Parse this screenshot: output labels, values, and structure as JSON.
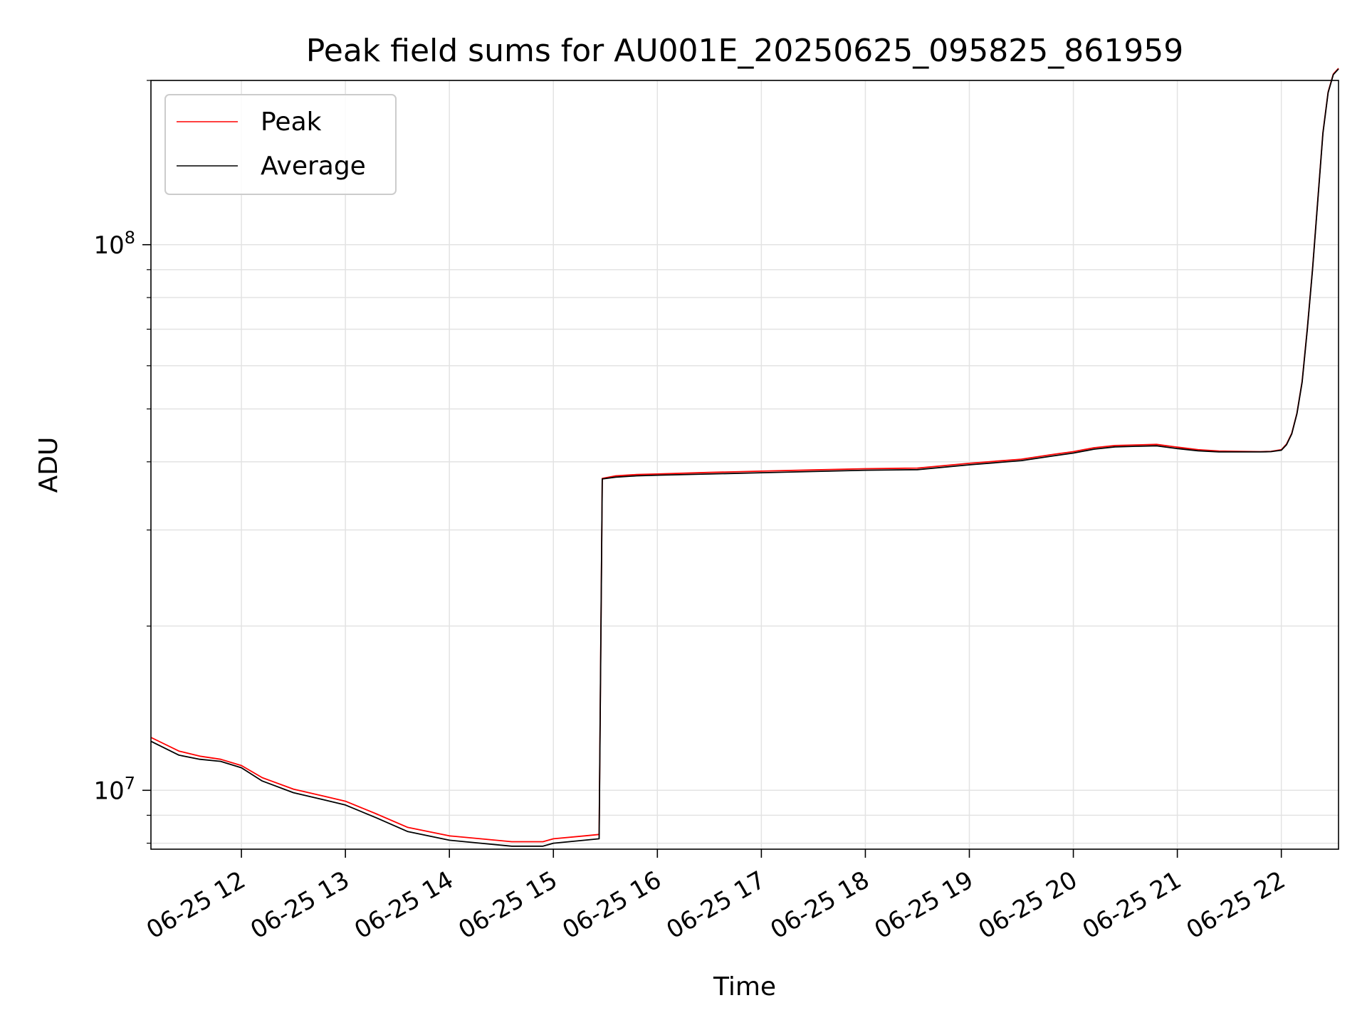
{
  "chart_data": {
    "type": "line",
    "title": "Peak field sums for AU001E_20250625_095825_861959",
    "xlabel": "Time",
    "ylabel": "ADU",
    "yscale": "log",
    "ylim": [
      7800000,
      200000000
    ],
    "xlim": [
      11.13,
      22.55
    ],
    "x_ticks": [
      {
        "value": 12,
        "label": "06-25 12"
      },
      {
        "value": 13,
        "label": "06-25 13"
      },
      {
        "value": 14,
        "label": "06-25 14"
      },
      {
        "value": 15,
        "label": "06-25 15"
      },
      {
        "value": 16,
        "label": "06-25 16"
      },
      {
        "value": 17,
        "label": "06-25 17"
      },
      {
        "value": 18,
        "label": "06-25 18"
      },
      {
        "value": 19,
        "label": "06-25 19"
      },
      {
        "value": 20,
        "label": "06-25 20"
      },
      {
        "value": 21,
        "label": "06-25 21"
      },
      {
        "value": 22,
        "label": "06-25 22"
      }
    ],
    "x_tick_rotation_deg": 30,
    "y_major_ticks": [
      {
        "value": 10000000,
        "base": "10",
        "exp": "7"
      },
      {
        "value": 100000000,
        "base": "10",
        "exp": "8"
      }
    ],
    "y_minor_ticks": [
      8000000,
      9000000,
      20000000,
      30000000,
      40000000,
      50000000,
      60000000,
      70000000,
      80000000,
      90000000,
      200000000
    ],
    "grid": true,
    "legend": {
      "position": "top-left",
      "entries": [
        {
          "label": "Peak",
          "color": "#ff0000"
        },
        {
          "label": "Average",
          "color": "#000000"
        }
      ]
    },
    "series": [
      {
        "name": "Average",
        "color": "#000000",
        "x": [
          11.13,
          11.4,
          11.6,
          11.8,
          12.0,
          12.2,
          12.5,
          12.8,
          13.0,
          13.3,
          13.6,
          14.0,
          14.3,
          14.6,
          14.9,
          15.0,
          15.3,
          15.44,
          15.47,
          15.6,
          15.8,
          16.0,
          16.5,
          17.0,
          17.5,
          18.0,
          18.5,
          19.0,
          19.5,
          19.8,
          20.0,
          20.2,
          20.4,
          20.6,
          20.8,
          21.0,
          21.2,
          21.4,
          21.6,
          21.8,
          21.9,
          22.0,
          22.05,
          22.1,
          22.15,
          22.2,
          22.25,
          22.3,
          22.35,
          22.4,
          22.45,
          22.5,
          22.55
        ],
        "values": [
          12300000,
          11600000,
          11400000,
          11300000,
          11000000,
          10400000,
          9900000,
          9600000,
          9400000,
          8900000,
          8400000,
          8100000,
          8000000,
          7900000,
          7900000,
          8000000,
          8100000,
          8150000,
          37200000,
          37500000,
          37700000,
          37800000,
          38000000,
          38200000,
          38400000,
          38600000,
          38700000,
          39500000,
          40200000,
          41000000,
          41500000,
          42200000,
          42600000,
          42700000,
          42800000,
          42300000,
          41900000,
          41700000,
          41700000,
          41700000,
          41750000,
          42000000,
          43000000,
          45000000,
          49000000,
          56000000,
          70000000,
          90000000,
          120000000,
          160000000,
          190000000,
          205000000,
          210000000
        ]
      },
      {
        "name": "Peak",
        "color": "#ff0000",
        "x": [
          11.13,
          11.4,
          11.6,
          11.8,
          12.0,
          12.2,
          12.5,
          12.8,
          13.0,
          13.3,
          13.6,
          14.0,
          14.3,
          14.6,
          14.9,
          15.0,
          15.3,
          15.44,
          15.47,
          15.6,
          15.8,
          16.0,
          16.5,
          17.0,
          17.5,
          18.0,
          18.5,
          19.0,
          19.5,
          19.8,
          20.0,
          20.2,
          20.4,
          20.6,
          20.8,
          21.0,
          21.2,
          21.4,
          21.6,
          21.8,
          21.9,
          22.0,
          22.05,
          22.1,
          22.15,
          22.2,
          22.25,
          22.3,
          22.35,
          22.4,
          22.45,
          22.5,
          22.55
        ],
        "values": [
          12500000,
          11800000,
          11550000,
          11400000,
          11100000,
          10550000,
          10050000,
          9750000,
          9550000,
          9050000,
          8550000,
          8250000,
          8150000,
          8050000,
          8050000,
          8150000,
          8250000,
          8300000,
          37300000,
          37700000,
          37900000,
          38000000,
          38250000,
          38450000,
          38650000,
          38850000,
          38950000,
          39750000,
          40450000,
          41250000,
          41750000,
          42450000,
          42850000,
          42950000,
          43050000,
          42550000,
          42100000,
          41850000,
          41800000,
          41750000,
          41800000,
          42100000,
          43100000,
          45100000,
          49100000,
          56200000,
          70300000,
          90300000,
          120500000,
          160500000,
          190500000,
          205500000,
          210500000
        ]
      }
    ]
  }
}
